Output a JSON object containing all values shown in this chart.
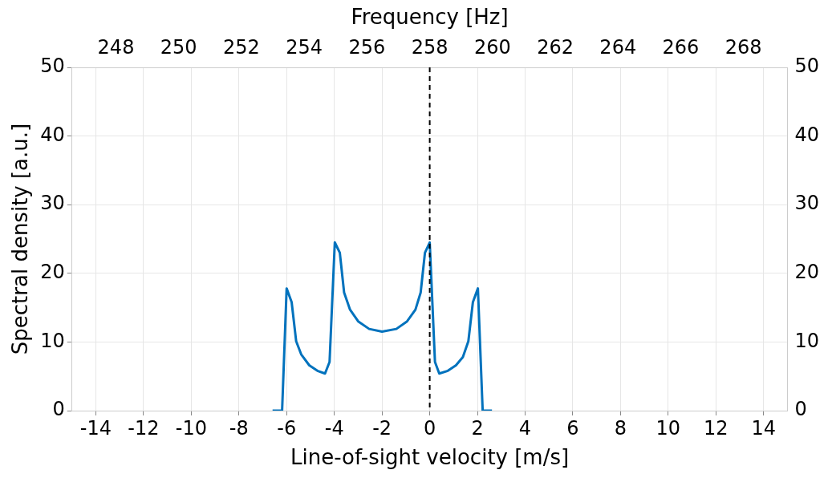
{
  "chart_data": {
    "type": "line",
    "xlabel": "Line-of-sight velocity [m/s]",
    "ylabel": "Spectral density [a.u.]",
    "x2label": "Frequency [Hz]",
    "x": [
      -6.59,
      -6.19,
      -6.0,
      -5.79,
      -5.6,
      -5.39,
      -5.05,
      -4.71,
      -4.39,
      -4.2,
      -3.98,
      -3.77,
      -3.59,
      -3.34,
      -3.0,
      -2.54,
      -2.0,
      -1.4,
      -0.95,
      -0.6,
      -0.38,
      -0.2,
      0,
      0.22,
      0.4,
      0.76,
      1.1,
      1.39,
      1.62,
      1.81,
      2.02,
      2.22,
      2.61
    ],
    "series": [
      {
        "color": "#0072bd",
        "values": [
          0,
          0,
          17.8,
          15.8,
          10.1,
          8.2,
          6.6,
          5.8,
          5.4,
          7.1,
          24.5,
          23.0,
          17.2,
          14.7,
          13.0,
          11.9,
          11.5,
          11.9,
          13.0,
          14.7,
          17.2,
          23.0,
          24.5,
          7.1,
          5.4,
          5.8,
          6.6,
          7.8,
          10.1,
          15.8,
          17.8,
          0,
          0
        ]
      }
    ],
    "xlim": [
      -15,
      15
    ],
    "xticks": [
      -14,
      -12,
      -10,
      -8,
      -6,
      -4,
      -2,
      0,
      2,
      4,
      6,
      8,
      10,
      12,
      14
    ],
    "ylim": [
      0,
      50
    ],
    "yticks": [
      0,
      10,
      20,
      30,
      40,
      50
    ],
    "y2lim": [
      0,
      50
    ],
    "y2ticks": [
      0,
      10,
      20,
      30,
      40,
      50
    ],
    "x2lim": [
      246.6,
      269.4
    ],
    "x2ticks": [
      248,
      250,
      252,
      254,
      256,
      258,
      260,
      262,
      264,
      266,
      268
    ],
    "ref_lines": [
      {
        "axis": "x",
        "value": 0,
        "color": "#000000",
        "line_style": "dashed"
      }
    ],
    "grid": true,
    "legend": false,
    "marker": "none",
    "line_style": "solid"
  }
}
